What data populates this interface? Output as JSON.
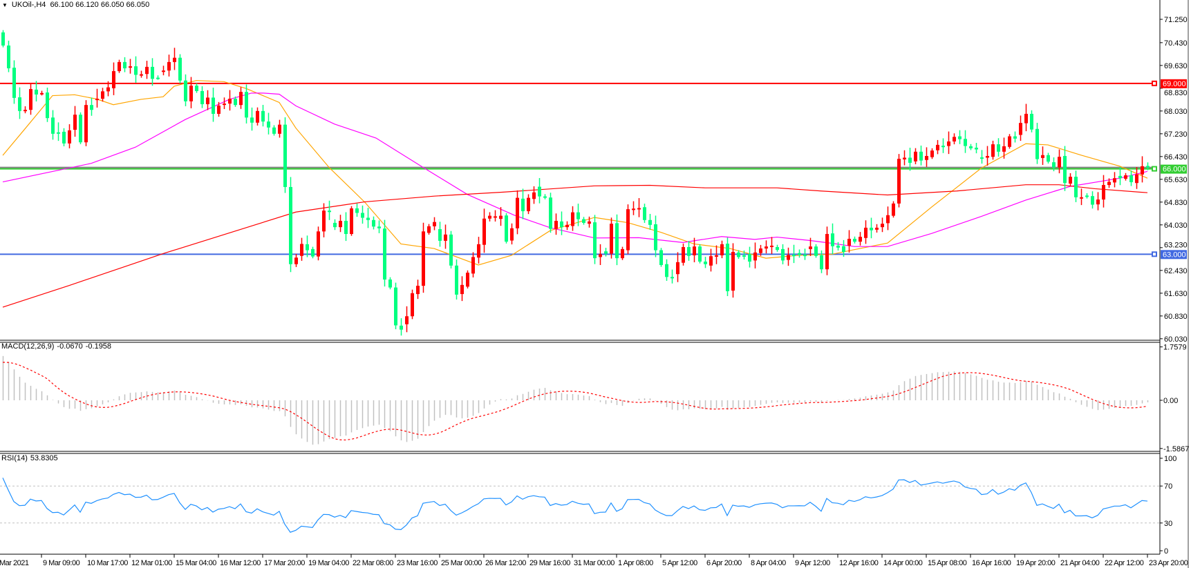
{
  "header": {
    "menu_icon": "triangle-down-icon",
    "symbol_timeframe": "UKOil-,H4",
    "ohlc": "66.100 66.120 66.050 66.050"
  },
  "chart_data": {
    "type": "candlestick",
    "colors": {
      "bull": "#ff0000",
      "bear": "#00ff80",
      "ma_fast": "#ffa500",
      "ma_mid": "#ff00ff",
      "ma_slow": "#ff0000",
      "rsi": "#1e90ff",
      "macd_hist": "#c0c0c0",
      "macd_signal": "#ff0000"
    },
    "price_axis": [
      "71.250",
      "70.430",
      "69.630",
      "68.830",
      "68.030",
      "67.230",
      "66.430",
      "65.630",
      "64.830",
      "64.030",
      "63.230",
      "62.430",
      "61.630",
      "60.830",
      "60.030"
    ],
    "time_axis": [
      "Mar 2021",
      "9 Mar 09:00",
      "10 Mar 17:00",
      "12 Mar 01:00",
      "15 Mar 04:00",
      "16 Mar 12:00",
      "17 Mar 20:00",
      "19 Mar 04:00",
      "22 Mar 08:00",
      "23 Mar 16:00",
      "25 Mar 00:00",
      "26 Mar 12:00",
      "29 Mar 16:00",
      "31 Mar 00:00",
      "1 Apr 08:00",
      "5 Apr 12:00",
      "6 Apr 20:00",
      "8 Apr 04:00",
      "9 Apr 12:00",
      "12 Apr 16:00",
      "14 Apr 00:00",
      "15 Apr 08:00",
      "16 Apr 16:00",
      "19 Apr 20:00",
      "21 Apr 04:00",
      "22 Apr 12:00",
      "23 Apr 20:00"
    ],
    "horizontal_lines": [
      {
        "price": 69.0,
        "label": "69.000",
        "color": "#ff0000"
      },
      {
        "price": 66.0,
        "label": "66.000",
        "color": "#32cd32"
      },
      {
        "price": 63.0,
        "label": "63.000",
        "color": "#4169e1"
      }
    ],
    "candles_open_close": [
      [
        70.79,
        70.33
      ],
      [
        70.33,
        69.53
      ],
      [
        69.55,
        68.49
      ],
      [
        68.51,
        68.03
      ],
      [
        68.05,
        68.07
      ],
      [
        68.07,
        68.8
      ],
      [
        68.78,
        68.61
      ],
      [
        68.64,
        68.66
      ],
      [
        68.68,
        67.78
      ],
      [
        67.8,
        67.23
      ],
      [
        67.28,
        67.26
      ],
      [
        67.3,
        66.89
      ],
      [
        66.89,
        67.35
      ],
      [
        67.37,
        67.9
      ],
      [
        67.9,
        66.93
      ],
      [
        66.93,
        68.24
      ],
      [
        68.24,
        68.07
      ],
      [
        68.43,
        68.46
      ],
      [
        68.46,
        68.72
      ],
      [
        68.72,
        68.86
      ],
      [
        68.83,
        69.43
      ],
      [
        69.43,
        69.75
      ],
      [
        69.75,
        69.53
      ],
      [
        69.55,
        69.6
      ],
      [
        69.6,
        69.3
      ],
      [
        69.3,
        69.32
      ],
      [
        69.33,
        69.58
      ],
      [
        69.58,
        69.16
      ],
      [
        69.2,
        69.19
      ],
      [
        69.42,
        69.45
      ],
      [
        69.45,
        69.75
      ],
      [
        69.75,
        69.9
      ],
      [
        69.9,
        69.1
      ],
      [
        69.1,
        68.37
      ],
      [
        68.37,
        68.92
      ],
      [
        68.92,
        68.73
      ],
      [
        68.73,
        68.27
      ],
      [
        68.27,
        68.5
      ],
      [
        68.5,
        67.93
      ],
      [
        67.93,
        68.22
      ],
      [
        68.27,
        68.29
      ],
      [
        68.29,
        68.46
      ],
      [
        68.46,
        68.24
      ],
      [
        68.24,
        68.7
      ],
      [
        68.7,
        67.8
      ],
      [
        67.8,
        67.62
      ],
      [
        67.62,
        68.03
      ],
      [
        68.03,
        67.66
      ],
      [
        67.66,
        67.45
      ],
      [
        67.45,
        67.23
      ],
      [
        67.23,
        67.55
      ],
      [
        67.55,
        65.36
      ],
      [
        65.36,
        62.65
      ],
      [
        62.65,
        62.88
      ],
      [
        62.94,
        63.36
      ],
      [
        63.35,
        63.14
      ],
      [
        63.18,
        62.92
      ],
      [
        62.92,
        63.8
      ],
      [
        63.8,
        64.53
      ],
      [
        64.53,
        64.48
      ],
      [
        64.1,
        63.95
      ],
      [
        63.95,
        64.17
      ],
      [
        64.17,
        63.71
      ],
      [
        63.71,
        64.61
      ],
      [
        64.61,
        64.45
      ],
      [
        64.45,
        64.28
      ],
      [
        64.28,
        64.2
      ],
      [
        64.2,
        63.97
      ],
      [
        63.97,
        63.91
      ],
      [
        63.9,
        62.11
      ],
      [
        62.11,
        61.83
      ],
      [
        61.83,
        60.5
      ],
      [
        60.49,
        60.35
      ],
      [
        60.54,
        60.82
      ],
      [
        60.82,
        61.63
      ],
      [
        61.6,
        61.89
      ],
      [
        61.89,
        63.8
      ],
      [
        63.75,
        63.98
      ],
      [
        63.98,
        64.13
      ],
      [
        63.88,
        63.47
      ],
      [
        63.47,
        63.69
      ],
      [
        63.69,
        62.6
      ],
      [
        62.6,
        61.58
      ],
      [
        61.6,
        61.92
      ],
      [
        61.86,
        62.35
      ],
      [
        62.32,
        62.9
      ],
      [
        62.88,
        63.35
      ],
      [
        63.33,
        64.25
      ],
      [
        64.25,
        64.35
      ],
      [
        64.32,
        64.33
      ],
      [
        64.24,
        64.35
      ],
      [
        64.36,
        63.44
      ],
      [
        63.48,
        63.91
      ],
      [
        63.91,
        64.98
      ],
      [
        64.95,
        64.51
      ],
      [
        64.51,
        64.98
      ],
      [
        64.94,
        65.17
      ],
      [
        65.37,
        65.03
      ],
      [
        65.03,
        64.99
      ],
      [
        64.99,
        63.89
      ],
      [
        63.89,
        64.17
      ],
      [
        64.15,
        63.95
      ],
      [
        63.95,
        64.03
      ],
      [
        63.99,
        64.47
      ],
      [
        64.47,
        64.23
      ],
      [
        64.23,
        64.1
      ],
      [
        64.07,
        64.15
      ],
      [
        64.12,
        62.86
      ],
      [
        62.9,
        63.0
      ],
      [
        63.1,
        63.02
      ],
      [
        63.02,
        64.07
      ],
      [
        64.09,
        62.86
      ],
      [
        62.86,
        63.18
      ],
      [
        63.14,
        64.58
      ],
      [
        64.58,
        64.6
      ],
      [
        64.58,
        64.62
      ],
      [
        64.65,
        64.2
      ],
      [
        64.2,
        64.03
      ],
      [
        64.05,
        63.14
      ],
      [
        63.14,
        62.62
      ],
      [
        62.65,
        62.2
      ],
      [
        62.2,
        62.18
      ],
      [
        62.3,
        62.72
      ],
      [
        62.7,
        63.25
      ],
      [
        63.25,
        62.94
      ],
      [
        62.96,
        63.27
      ],
      [
        63.27,
        62.74
      ],
      [
        62.74,
        62.65
      ],
      [
        62.6,
        62.93
      ],
      [
        62.93,
        62.96
      ],
      [
        62.96,
        63.35
      ],
      [
        63.37,
        61.7
      ],
      [
        61.72,
        63.08
      ],
      [
        63.06,
        62.9
      ],
      [
        62.96,
        62.95
      ],
      [
        63.0,
        62.74
      ],
      [
        62.78,
        63.06
      ],
      [
        63.04,
        63.2
      ],
      [
        63.2,
        63.27
      ],
      [
        63.25,
        63.3
      ],
      [
        63.25,
        63.15
      ],
      [
        63.18,
        62.78
      ],
      [
        62.8,
        62.97
      ],
      [
        62.98,
        62.97
      ],
      [
        63.04,
        62.98
      ],
      [
        62.98,
        62.97
      ],
      [
        63.18,
        63.27
      ],
      [
        63.27,
        62.94
      ],
      [
        62.96,
        62.47
      ],
      [
        62.47,
        63.71
      ],
      [
        63.73,
        63.28
      ],
      [
        63.3,
        63.23
      ],
      [
        63.28,
        63.08
      ],
      [
        63.3,
        63.54
      ],
      [
        63.54,
        63.44
      ],
      [
        63.44,
        63.61
      ],
      [
        63.57,
        63.93
      ],
      [
        63.93,
        63.84
      ],
      [
        63.86,
        63.93
      ],
      [
        63.95,
        64.07
      ],
      [
        64.09,
        64.37
      ],
      [
        64.35,
        64.78
      ],
      [
        64.78,
        66.35
      ],
      [
        66.33,
        66.39
      ],
      [
        66.39,
        66.21
      ],
      [
        66.26,
        66.6
      ],
      [
        66.6,
        66.29
      ],
      [
        66.31,
        66.45
      ],
      [
        66.41,
        66.64
      ],
      [
        66.65,
        66.84
      ],
      [
        66.81,
        66.76
      ],
      [
        66.8,
        66.96
      ],
      [
        66.96,
        67.12
      ],
      [
        67.14,
        67.04
      ],
      [
        67.05,
        66.8
      ],
      [
        66.79,
        66.72
      ],
      [
        66.74,
        66.68
      ],
      [
        66.4,
        66.39
      ],
      [
        66.39,
        66.45
      ],
      [
        66.42,
        66.86
      ],
      [
        66.86,
        66.6
      ],
      [
        66.6,
        66.79
      ],
      [
        66.77,
        67.14
      ],
      [
        67.14,
        67.06
      ],
      [
        67.19,
        67.61
      ],
      [
        67.6,
        67.93
      ],
      [
        67.93,
        67.38
      ],
      [
        67.4,
        66.34
      ],
      [
        66.38,
        66.48
      ],
      [
        66.48,
        66.25
      ],
      [
        66.23,
        66.05
      ],
      [
        66.05,
        66.42
      ],
      [
        66.45,
        65.5
      ],
      [
        65.48,
        65.72
      ],
      [
        65.72,
        65.0
      ],
      [
        64.97,
        65.0
      ],
      [
        65.06,
        65.02
      ],
      [
        65.04,
        64.74
      ],
      [
        64.75,
        64.92
      ],
      [
        64.92,
        65.43
      ],
      [
        65.43,
        65.54
      ],
      [
        65.52,
        65.67
      ],
      [
        65.75,
        65.67
      ],
      [
        65.65,
        65.77
      ],
      [
        65.77,
        65.53
      ],
      [
        65.5,
        65.8
      ],
      [
        65.8,
        66.09
      ],
      [
        66.1,
        66.05
      ]
    ],
    "moving_averages": [
      {
        "color": "#ffa500",
        "points": [
          [
            0,
            66.47
          ],
          [
            4,
            67.4
          ],
          [
            9,
            68.57
          ],
          [
            13,
            68.6
          ],
          [
            17,
            68.45
          ],
          [
            20,
            68.25
          ],
          [
            25,
            68.44
          ],
          [
            29,
            68.53
          ],
          [
            31,
            68.9
          ],
          [
            35,
            69.1
          ],
          [
            40,
            69.06
          ],
          [
            44,
            68.82
          ],
          [
            50,
            68.33
          ],
          [
            53,
            67.43
          ],
          [
            59,
            66.05
          ],
          [
            65.5,
            64.82
          ],
          [
            72,
            63.36
          ],
          [
            78,
            63.2
          ],
          [
            86,
            62.62
          ],
          [
            92,
            62.96
          ],
          [
            99,
            63.83
          ],
          [
            107,
            64.29
          ],
          [
            113,
            64.11
          ],
          [
            119,
            63.77
          ],
          [
            125,
            63.36
          ],
          [
            131.5,
            63.2
          ],
          [
            138,
            62.86
          ],
          [
            144,
            62.96
          ],
          [
            150,
            63.0
          ],
          [
            154,
            63.16
          ],
          [
            160,
            63.39
          ],
          [
            168,
            64.66
          ],
          [
            177,
            66.03
          ],
          [
            185,
            66.88
          ],
          [
            189,
            66.84
          ],
          [
            195,
            66.48
          ],
          [
            202,
            66.09
          ],
          [
            207,
            65.67
          ]
        ]
      },
      {
        "color": "#ff00ff",
        "points": [
          [
            0,
            65.54
          ],
          [
            16,
            66.19
          ],
          [
            24,
            66.76
          ],
          [
            33,
            67.73
          ],
          [
            41,
            68.44
          ],
          [
            45,
            68.66
          ],
          [
            47,
            68.66
          ],
          [
            50,
            68.62
          ],
          [
            53,
            68.21
          ],
          [
            60,
            67.57
          ],
          [
            67.5,
            67.08
          ],
          [
            76,
            66.05
          ],
          [
            84,
            65.1
          ],
          [
            92.5,
            64.37
          ],
          [
            99,
            63.93
          ],
          [
            107,
            63.57
          ],
          [
            115,
            63.58
          ],
          [
            123,
            63.41
          ],
          [
            130,
            63.62
          ],
          [
            136,
            63.52
          ],
          [
            140,
            63.6
          ],
          [
            146,
            63.48
          ],
          [
            150,
            63.38
          ],
          [
            154,
            63.27
          ],
          [
            160,
            63.27
          ],
          [
            168,
            63.73
          ],
          [
            177,
            64.33
          ],
          [
            185,
            64.9
          ],
          [
            193,
            65.38
          ],
          [
            202,
            65.67
          ],
          [
            207,
            65.91
          ]
        ]
      },
      {
        "color": "#ff0000",
        "points": [
          [
            0,
            61.14
          ],
          [
            12,
            61.9
          ],
          [
            29,
            63.02
          ],
          [
            53,
            64.48
          ],
          [
            65.5,
            64.84
          ],
          [
            78,
            65.04
          ],
          [
            90.5,
            65.18
          ],
          [
            107,
            65.4
          ],
          [
            117,
            65.42
          ],
          [
            127,
            65.33
          ],
          [
            140,
            65.33
          ],
          [
            148,
            65.22
          ],
          [
            160,
            65.08
          ],
          [
            172.5,
            65.22
          ],
          [
            185,
            65.44
          ],
          [
            191,
            65.44
          ],
          [
            197.5,
            65.3
          ],
          [
            207,
            65.16
          ]
        ]
      }
    ],
    "macd": {
      "label": "MACD(12,26,9)",
      "main": "-0.0670",
      "signal": "-0.1958",
      "axis": [
        "1.7579",
        "0.00",
        "-1.5867"
      ]
    },
    "rsi": {
      "label": "RSI(14)",
      "value": "53.8305",
      "axis": [
        "100",
        "70",
        "30",
        "0"
      ],
      "levels": [
        70,
        30
      ]
    }
  }
}
